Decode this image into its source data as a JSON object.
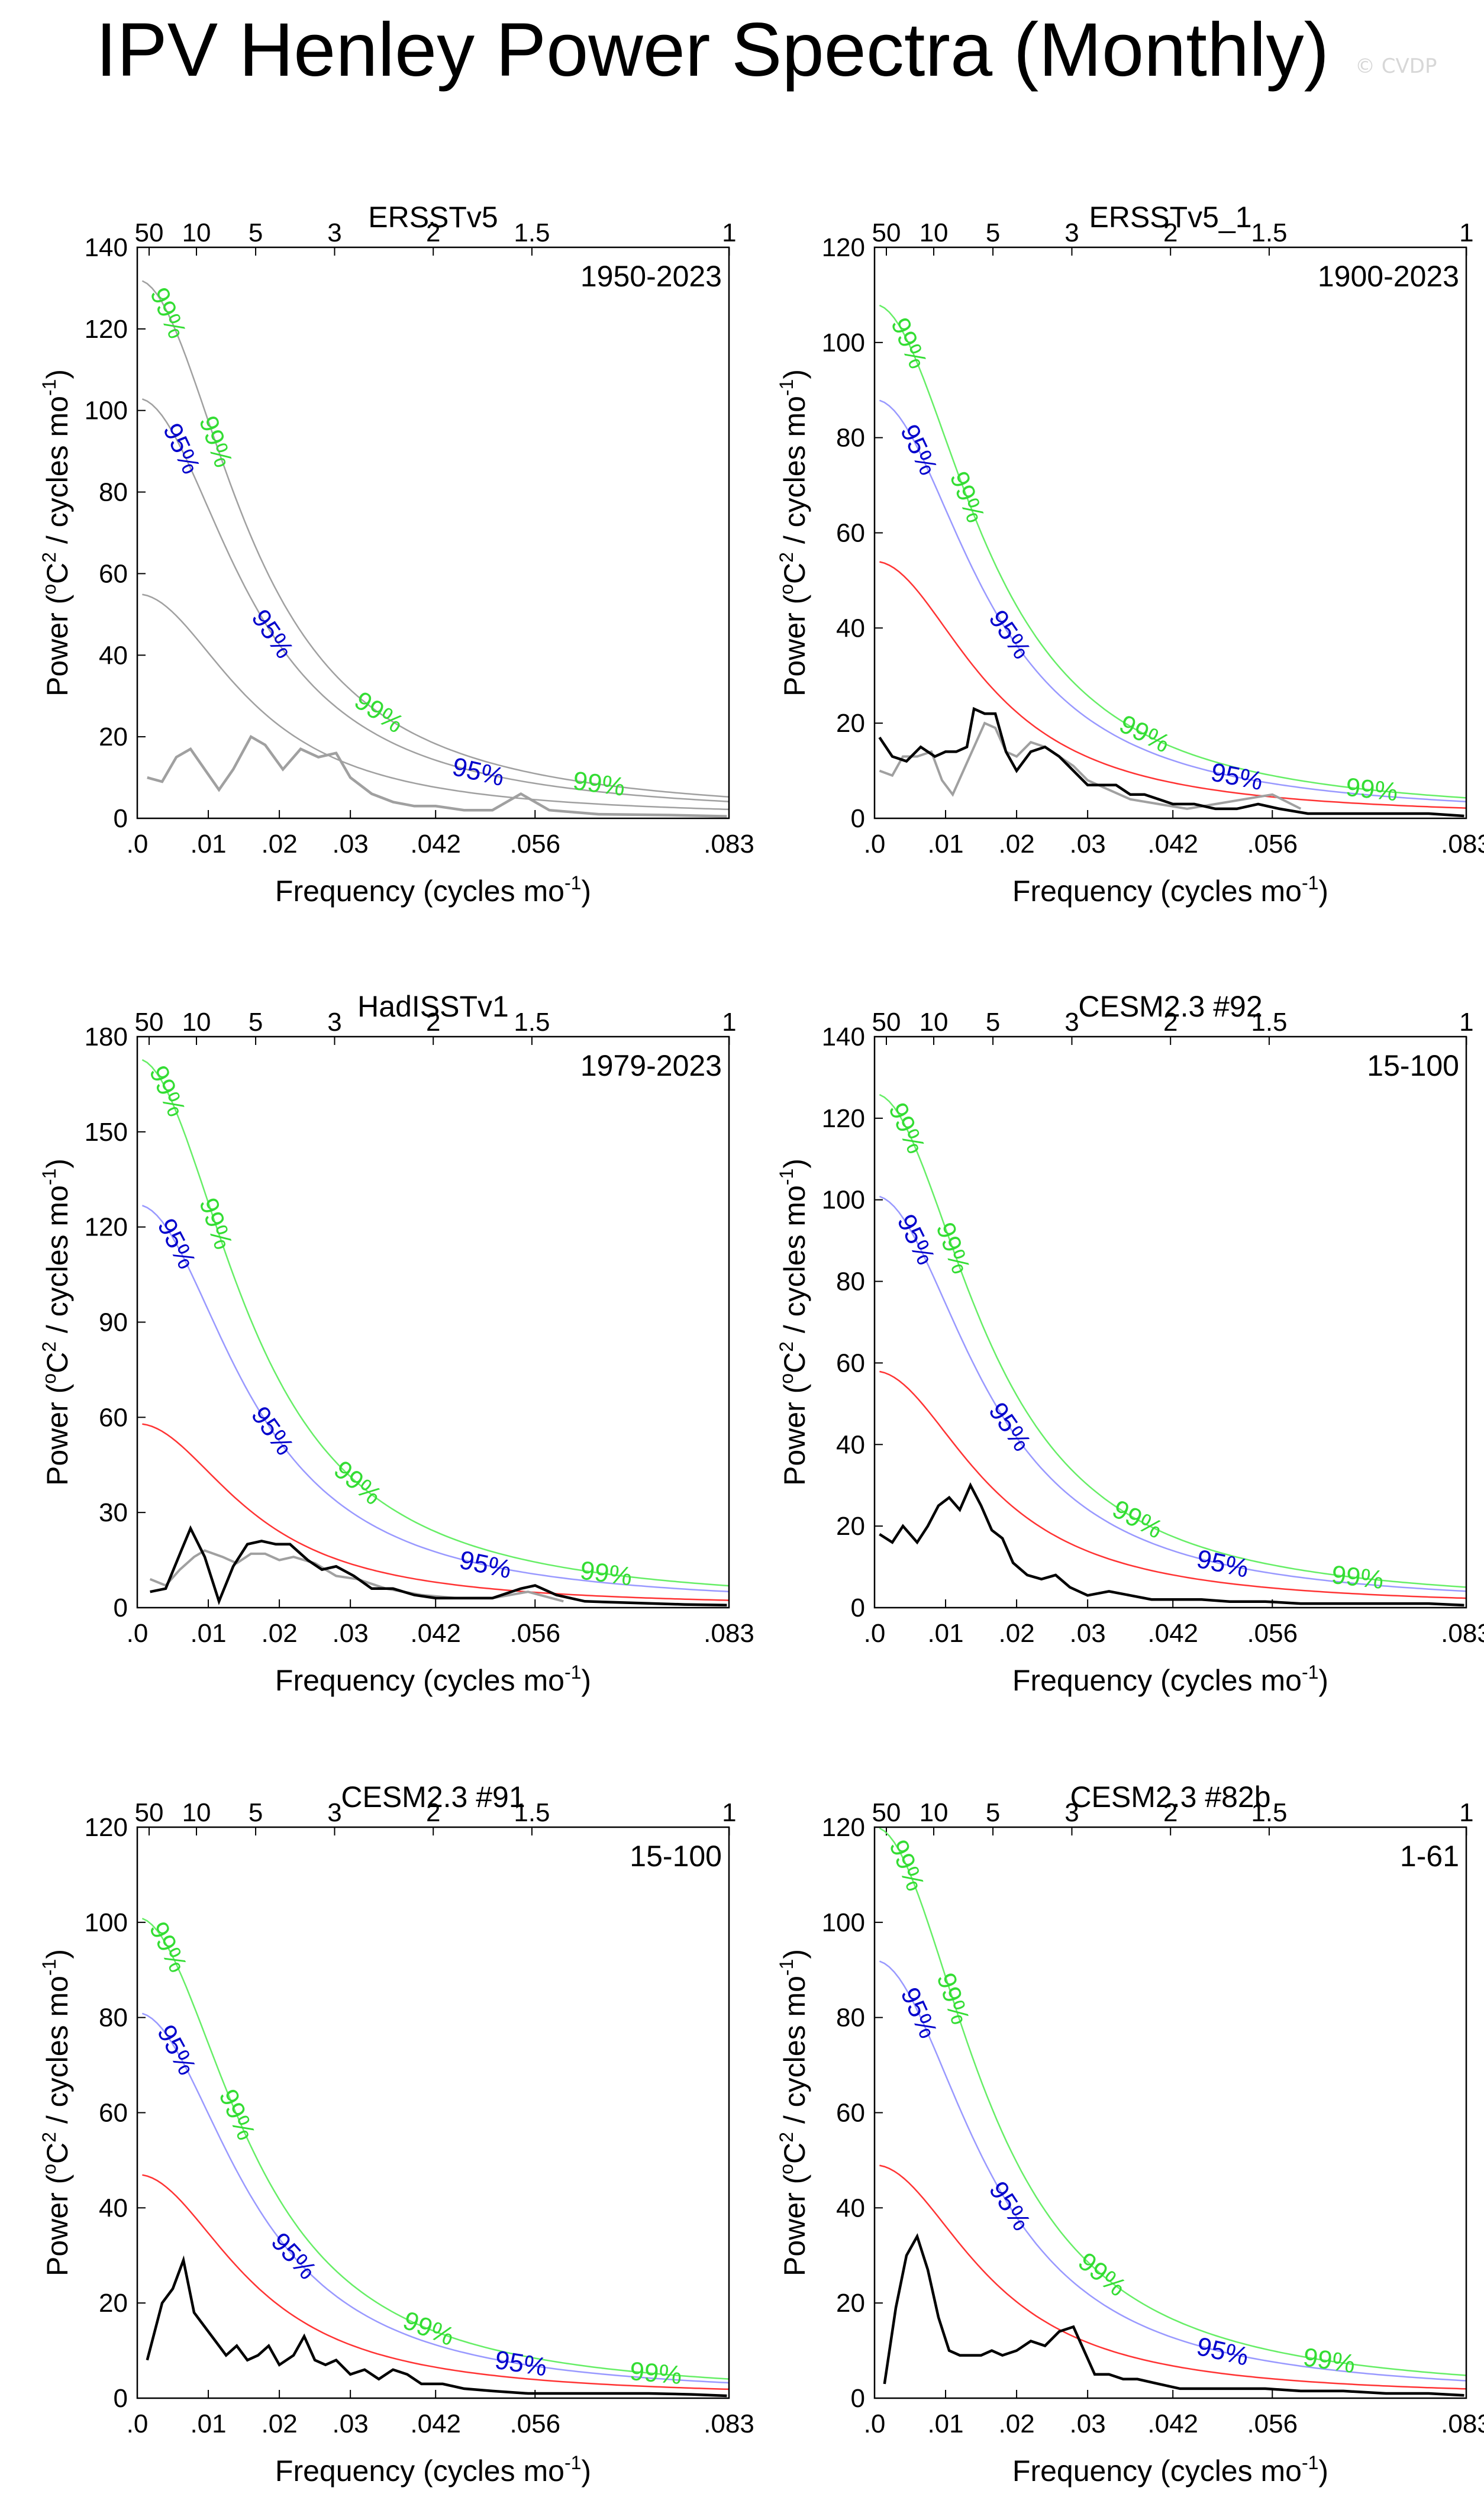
{
  "title": "IPV Henley Power Spectra (Monthly)",
  "credit": "© CVDP",
  "colors": {
    "spectrum": "#000000",
    "other_spectrum": "#a0a0a0",
    "red_noise": "#ff3333",
    "ci95_line": "#9999ff",
    "ci99_line": "#66ee66",
    "ci95_label": "#0000cc",
    "ci99_label": "#33dd33"
  },
  "shared_axes": {
    "xlabel": "Frequency (cycles mo",
    "xlabel_sup": "-1",
    "xlabel_end": ")",
    "ylabel_parts": [
      "Power (",
      "o",
      "C",
      "2",
      " / cycles mo",
      "-1",
      ")"
    ],
    "xlim": [
      0,
      0.0833
    ],
    "bottom_ticks": [
      {
        "value": 0,
        "label": ".0"
      },
      {
        "value": 0.01,
        "label": ".01"
      },
      {
        "value": 0.02,
        "label": ".02"
      },
      {
        "value": 0.03,
        "label": ".03"
      },
      {
        "value": 0.042,
        "label": ".042"
      },
      {
        "value": 0.056,
        "label": ".056"
      },
      {
        "value": 0.0833,
        "label": ".083"
      }
    ],
    "top_ticks_years": [
      {
        "label": "50",
        "years": 50
      },
      {
        "label": "10",
        "years": 10
      },
      {
        "label": "5",
        "years": 5
      },
      {
        "label": "3",
        "years": 3
      },
      {
        "label": "2",
        "years": 2
      },
      {
        "label": "1.5",
        "years": 1.5
      },
      {
        "label": "1",
        "years": 1
      }
    ],
    "ci_labels": {
      "p95": "95%",
      "p99": "99%"
    }
  },
  "chart_data": [
    {
      "type": "line",
      "title": "ERSSTv5",
      "period": "1950-2023",
      "ylim": [
        0,
        140
      ],
      "yticks": [
        0,
        20,
        40,
        60,
        80,
        100,
        120,
        140
      ],
      "spectrum_color": "other",
      "red_noise_color": "other",
      "red_noise_peak": 55,
      "ci95_peak": 103,
      "ci99_peak": 132,
      "ci95_label_freqs": [
        0.0062,
        0.019,
        0.048
      ],
      "ci99_label_freqs": [
        0.0043,
        0.011,
        0.034,
        0.065
      ],
      "spectrum": {
        "x": [
          0.0014,
          0.0035,
          0.0055,
          0.0075,
          0.0095,
          0.0115,
          0.0135,
          0.016,
          0.018,
          0.0205,
          0.023,
          0.0255,
          0.028,
          0.03,
          0.033,
          0.036,
          0.039,
          0.042,
          0.046,
          0.05,
          0.054,
          0.058,
          0.065,
          0.075,
          0.083
        ],
        "y": [
          10,
          9,
          15,
          17,
          12,
          7,
          12,
          20,
          18,
          12,
          17,
          15,
          16,
          10,
          6,
          4,
          3,
          3,
          2,
          2,
          6,
          2,
          1,
          0.8,
          0.5
        ]
      }
    },
    {
      "type": "line",
      "title": "ERSSTv5_1",
      "period": "1900-2023",
      "ylim": [
        0,
        120
      ],
      "yticks": [
        0,
        20,
        40,
        60,
        80,
        100,
        120
      ],
      "spectrum_color": "main",
      "red_noise_color": "main",
      "red_noise_peak": 54,
      "ci95_peak": 88,
      "ci99_peak": 108,
      "ci95_label_freqs": [
        0.0062,
        0.019,
        0.051
      ],
      "ci99_label_freqs": [
        0.0048,
        0.013,
        0.038,
        0.07
      ],
      "spectrum": {
        "x": [
          0.0007,
          0.0025,
          0.0045,
          0.0065,
          0.0085,
          0.01,
          0.0115,
          0.013,
          0.014,
          0.0155,
          0.017,
          0.0185,
          0.02,
          0.022,
          0.024,
          0.026,
          0.028,
          0.03,
          0.032,
          0.034,
          0.036,
          0.038,
          0.04,
          0.042,
          0.045,
          0.048,
          0.051,
          0.054,
          0.057,
          0.061,
          0.066,
          0.072,
          0.078,
          0.083
        ],
        "y": [
          17,
          13,
          12,
          15,
          13,
          14,
          14,
          15,
          23,
          22,
          22,
          14,
          10,
          14,
          15,
          13,
          10,
          7,
          7,
          7,
          5,
          5,
          4,
          3,
          3,
          2,
          2,
          3,
          2,
          1,
          1,
          1,
          1,
          0.5
        ]
      },
      "other_spectrum": {
        "x": [
          0.0007,
          0.0025,
          0.004,
          0.006,
          0.008,
          0.0095,
          0.011,
          0.0125,
          0.014,
          0.0155,
          0.017,
          0.0185,
          0.02,
          0.022,
          0.024,
          0.026,
          0.028,
          0.03,
          0.033,
          0.036,
          0.04,
          0.044,
          0.048,
          0.052,
          0.056,
          0.06
        ],
        "y": [
          10,
          9,
          13,
          13,
          14,
          8,
          5,
          10,
          15,
          20,
          19,
          14,
          13,
          16,
          15,
          13,
          11,
          8,
          6,
          4,
          3,
          2,
          3,
          4,
          5,
          2
        ]
      }
    },
    {
      "type": "line",
      "title": "HadISSTv1",
      "period": "1979-2023",
      "ylim": [
        0,
        180
      ],
      "yticks": [
        0,
        30,
        60,
        90,
        120,
        150,
        180
      ],
      "spectrum_color": "main",
      "red_noise_color": "main",
      "red_noise_peak": 58,
      "ci95_peak": 127,
      "ci99_peak": 173,
      "ci95_label_freqs": [
        0.0055,
        0.019,
        0.049
      ],
      "ci99_label_freqs": [
        0.0042,
        0.011,
        0.031,
        0.066
      ],
      "spectrum": {
        "x": [
          0.0018,
          0.004,
          0.0062,
          0.0075,
          0.0095,
          0.0115,
          0.0135,
          0.0155,
          0.0175,
          0.0195,
          0.0215,
          0.024,
          0.026,
          0.028,
          0.0305,
          0.033,
          0.036,
          0.039,
          0.042,
          0.046,
          0.05,
          0.054,
          0.056,
          0.059,
          0.063,
          0.07,
          0.077,
          0.083
        ],
        "y": [
          5,
          6,
          18,
          25,
          16,
          2,
          13,
          20,
          21,
          20,
          20,
          15,
          12,
          13,
          10,
          6,
          6,
          4,
          3,
          3,
          3,
          6,
          7,
          4,
          2,
          1.5,
          1,
          0.8
        ]
      },
      "other_spectrum": {
        "x": [
          0.0018,
          0.004,
          0.006,
          0.008,
          0.0095,
          0.012,
          0.014,
          0.016,
          0.018,
          0.02,
          0.022,
          0.025,
          0.028,
          0.031,
          0.035,
          0.04,
          0.045,
          0.05,
          0.055,
          0.06
        ],
        "y": [
          9,
          7,
          12,
          16,
          18,
          16,
          14,
          17,
          17,
          15,
          16,
          14,
          10,
          9,
          6,
          4,
          3,
          3,
          5,
          2
        ]
      }
    },
    {
      "type": "line",
      "title": "CESM2.3 #92",
      "period": "15-100",
      "ylim": [
        0,
        140
      ],
      "yticks": [
        0,
        20,
        40,
        60,
        80,
        100,
        120,
        140
      ],
      "spectrum_color": "main",
      "red_noise_color": "main",
      "red_noise_peak": 58,
      "ci95_peak": 101,
      "ci99_peak": 126,
      "ci95_label_freqs": [
        0.0058,
        0.019,
        0.049
      ],
      "ci99_label_freqs": [
        0.0045,
        0.011,
        0.037,
        0.068
      ],
      "spectrum": {
        "x": [
          0.0007,
          0.0025,
          0.004,
          0.006,
          0.0075,
          0.009,
          0.0105,
          0.012,
          0.0135,
          0.015,
          0.0165,
          0.018,
          0.0195,
          0.0215,
          0.0235,
          0.0255,
          0.0275,
          0.03,
          0.033,
          0.036,
          0.039,
          0.042,
          0.046,
          0.05,
          0.055,
          0.06,
          0.066,
          0.072,
          0.078,
          0.083
        ],
        "y": [
          18,
          16,
          20,
          16,
          20,
          25,
          27,
          24,
          30,
          25,
          19,
          17,
          11,
          8,
          7,
          8,
          5,
          3,
          4,
          3,
          2,
          2,
          2,
          1.5,
          1.5,
          1,
          1,
          1,
          1,
          0.6
        ]
      }
    },
    {
      "type": "line",
      "title": "CESM2.3 #91",
      "period": "15-100",
      "ylim": [
        0,
        120
      ],
      "yticks": [
        0,
        20,
        40,
        60,
        80,
        100,
        120
      ],
      "spectrum_color": "main",
      "red_noise_color": "main",
      "red_noise_peak": 47,
      "ci95_peak": 81,
      "ci99_peak": 101,
      "ci95_label_freqs": [
        0.0055,
        0.022,
        0.054
      ],
      "ci99_label_freqs": [
        0.0043,
        0.014,
        0.041,
        0.073
      ],
      "spectrum": {
        "x": [
          0.0014,
          0.0035,
          0.005,
          0.0065,
          0.008,
          0.0095,
          0.011,
          0.0125,
          0.014,
          0.0155,
          0.017,
          0.0185,
          0.02,
          0.022,
          0.0235,
          0.025,
          0.0265,
          0.028,
          0.03,
          0.032,
          0.034,
          0.036,
          0.038,
          0.04,
          0.043,
          0.046,
          0.05,
          0.055,
          0.06,
          0.066,
          0.072,
          0.078,
          0.083
        ],
        "y": [
          8,
          20,
          23,
          29,
          18,
          15,
          12,
          9,
          11,
          8,
          9,
          11,
          7,
          9,
          13,
          8,
          7,
          8,
          5,
          6,
          4,
          6,
          5,
          3,
          3,
          2,
          1.5,
          1,
          1,
          1,
          1,
          0.8,
          0.5
        ]
      }
    },
    {
      "type": "line",
      "title": "CESM2.3 #82b",
      "period": "1-61",
      "ylim": [
        0,
        120
      ],
      "yticks": [
        0,
        20,
        40,
        60,
        80,
        100,
        120
      ],
      "spectrum_color": "main",
      "red_noise_color": "main",
      "red_noise_peak": 49,
      "ci95_peak": 92,
      "ci99_peak": 120,
      "ci95_label_freqs": [
        0.0062,
        0.019,
        0.049
      ],
      "ci99_label_freqs": [
        0.0045,
        0.011,
        0.032,
        0.064
      ],
      "spectrum": {
        "x": [
          0.0014,
          0.003,
          0.0045,
          0.006,
          0.0075,
          0.009,
          0.0105,
          0.012,
          0.0135,
          0.015,
          0.0165,
          0.018,
          0.02,
          0.022,
          0.024,
          0.026,
          0.028,
          0.0295,
          0.031,
          0.033,
          0.035,
          0.037,
          0.04,
          0.043,
          0.046,
          0.05,
          0.055,
          0.06,
          0.066,
          0.072,
          0.078,
          0.083
        ],
        "y": [
          3,
          19,
          30,
          34,
          27,
          17,
          10,
          9,
          9,
          9,
          10,
          9,
          10,
          12,
          11,
          14,
          15,
          10,
          5,
          5,
          4,
          4,
          3,
          2,
          2,
          2,
          2,
          1.5,
          1.5,
          1,
          1,
          0.6
        ]
      }
    }
  ]
}
